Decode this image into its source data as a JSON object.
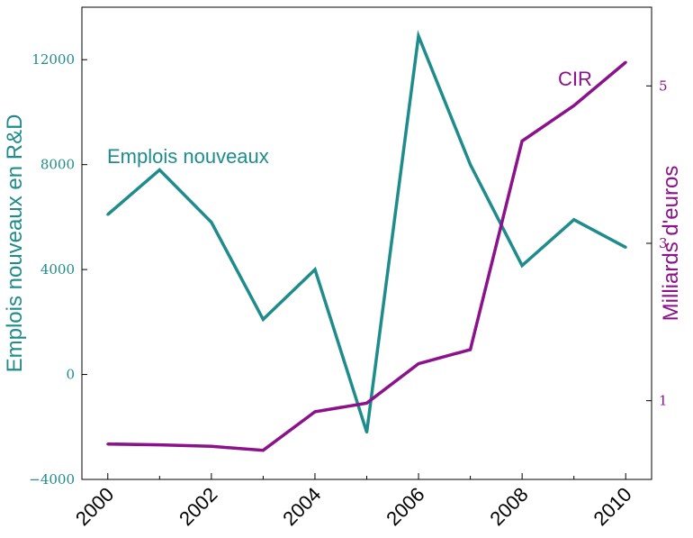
{
  "colors": {
    "emplois": "#1f8c8c",
    "cir": "#8b128b",
    "axis": "#000000",
    "background": "#ffffff"
  },
  "chart_data": {
    "type": "line",
    "title": "",
    "xlabel": "",
    "ylabel_left": "Emplois nouveaux en R&D",
    "ylabel_right": "Milliards d'euros",
    "x": [
      2000,
      2001,
      2002,
      2003,
      2004,
      2005,
      2006,
      2007,
      2008,
      2009,
      2010
    ],
    "xlim": [
      1999.5,
      2010.5
    ],
    "x_ticks": [
      "2000",
      "2002",
      "2004",
      "2006",
      "2008",
      "2010"
    ],
    "ylim_left": [
      -4000,
      14000
    ],
    "y_ticks_left": [
      "−4000",
      "0",
      "4000",
      "8000",
      "12000"
    ],
    "ylim_right": [
      0,
      6
    ],
    "y_ticks_right": [
      "1",
      "3",
      "5"
    ],
    "grid": false,
    "legend": "inline labels",
    "series": [
      {
        "name": "Emplois nouveaux",
        "axis": "left",
        "values": [
          6100,
          7800,
          5800,
          2100,
          4000,
          -2200,
          12900,
          8000,
          4150,
          5900,
          4850
        ]
      },
      {
        "name": "CIR",
        "axis": "right",
        "values": [
          0.45,
          0.44,
          0.42,
          0.37,
          0.86,
          0.97,
          1.47,
          1.65,
          4.3,
          4.75,
          5.3
        ]
      }
    ]
  }
}
